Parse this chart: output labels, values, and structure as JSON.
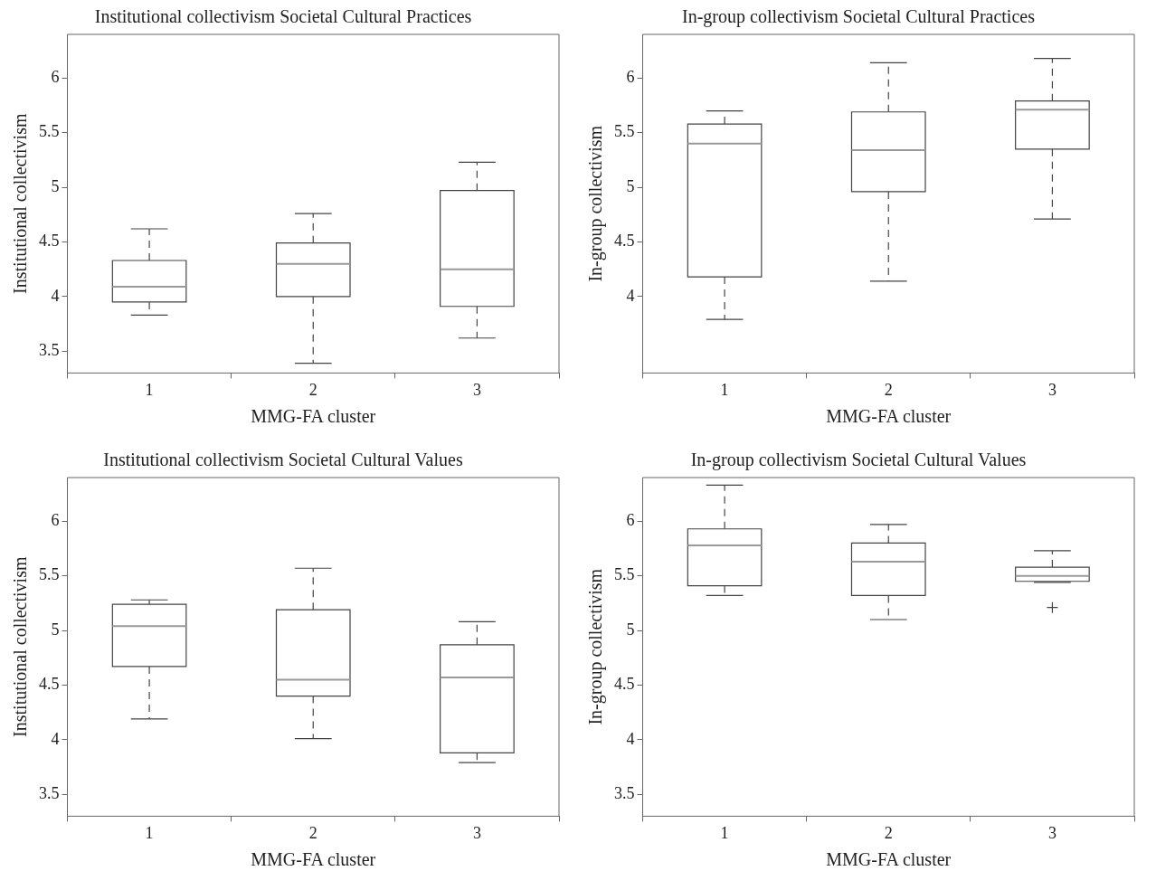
{
  "chart_data": [
    {
      "type": "box",
      "title": "Institutional collectivism Societal Cultural Practices",
      "xlabel": "MMG-FA cluster",
      "ylabel": "Institutional collectivism",
      "categories": [
        "1",
        "2",
        "3"
      ],
      "ylim": [
        3.3,
        6.4
      ],
      "yticks": [
        3.5,
        4,
        4.5,
        5,
        5.5,
        6
      ],
      "boxes": [
        {
          "low": 3.83,
          "q1": 3.95,
          "median": 4.09,
          "q3": 4.33,
          "high": 4.62
        },
        {
          "low": 3.39,
          "q1": 4.0,
          "median": 4.3,
          "q3": 4.49,
          "high": 4.76
        },
        {
          "low": 3.62,
          "q1": 3.91,
          "median": 4.25,
          "q3": 4.97,
          "high": 5.23
        }
      ]
    },
    {
      "type": "box",
      "title": "In-group collectivism Societal Cultural Practices",
      "xlabel": "MMG-FA cluster",
      "ylabel": "In-group collectivism",
      "categories": [
        "1",
        "2",
        "3"
      ],
      "ylim": [
        3.3,
        6.4
      ],
      "yticks": [
        4,
        4.5,
        5,
        5.5,
        6
      ],
      "boxes": [
        {
          "low": 3.79,
          "q1": 4.18,
          "median": 5.4,
          "q3": 5.58,
          "high": 5.7
        },
        {
          "low": 4.14,
          "q1": 4.96,
          "median": 5.34,
          "q3": 5.69,
          "high": 6.14
        },
        {
          "low": 4.71,
          "q1": 5.35,
          "median": 5.71,
          "q3": 5.79,
          "high": 6.18
        }
      ]
    },
    {
      "type": "box",
      "title": "Institutional collectivism Societal Cultural Values",
      "xlabel": "MMG-FA cluster",
      "ylabel": "Institutional collectivism",
      "categories": [
        "1",
        "2",
        "3"
      ],
      "ylim": [
        3.3,
        6.4
      ],
      "yticks": [
        3.5,
        4,
        4.5,
        5,
        5.5,
        6
      ],
      "boxes": [
        {
          "low": 4.19,
          "q1": 4.67,
          "median": 5.04,
          "q3": 5.24,
          "high": 5.28
        },
        {
          "low": 4.01,
          "q1": 4.4,
          "median": 4.55,
          "q3": 5.19,
          "high": 5.57
        },
        {
          "low": 3.79,
          "q1": 3.88,
          "median": 4.57,
          "q3": 4.87,
          "high": 5.08
        }
      ]
    },
    {
      "type": "box",
      "title": "In-group collectivism Societal Cultural Values",
      "xlabel": "MMG-FA cluster",
      "ylabel": "In-group collectivism",
      "categories": [
        "1",
        "2",
        "3"
      ],
      "ylim": [
        3.3,
        6.4
      ],
      "yticks": [
        3.5,
        4,
        4.5,
        5,
        5.5,
        6
      ],
      "boxes": [
        {
          "low": 5.32,
          "q1": 5.41,
          "median": 5.78,
          "q3": 5.93,
          "high": 6.33
        },
        {
          "low": 5.1,
          "q1": 5.32,
          "median": 5.63,
          "q3": 5.8,
          "high": 5.97
        },
        {
          "low": 5.44,
          "q1": 5.45,
          "median": 5.5,
          "q3": 5.58,
          "high": 5.73,
          "outliers": [
            5.21
          ]
        }
      ]
    }
  ]
}
